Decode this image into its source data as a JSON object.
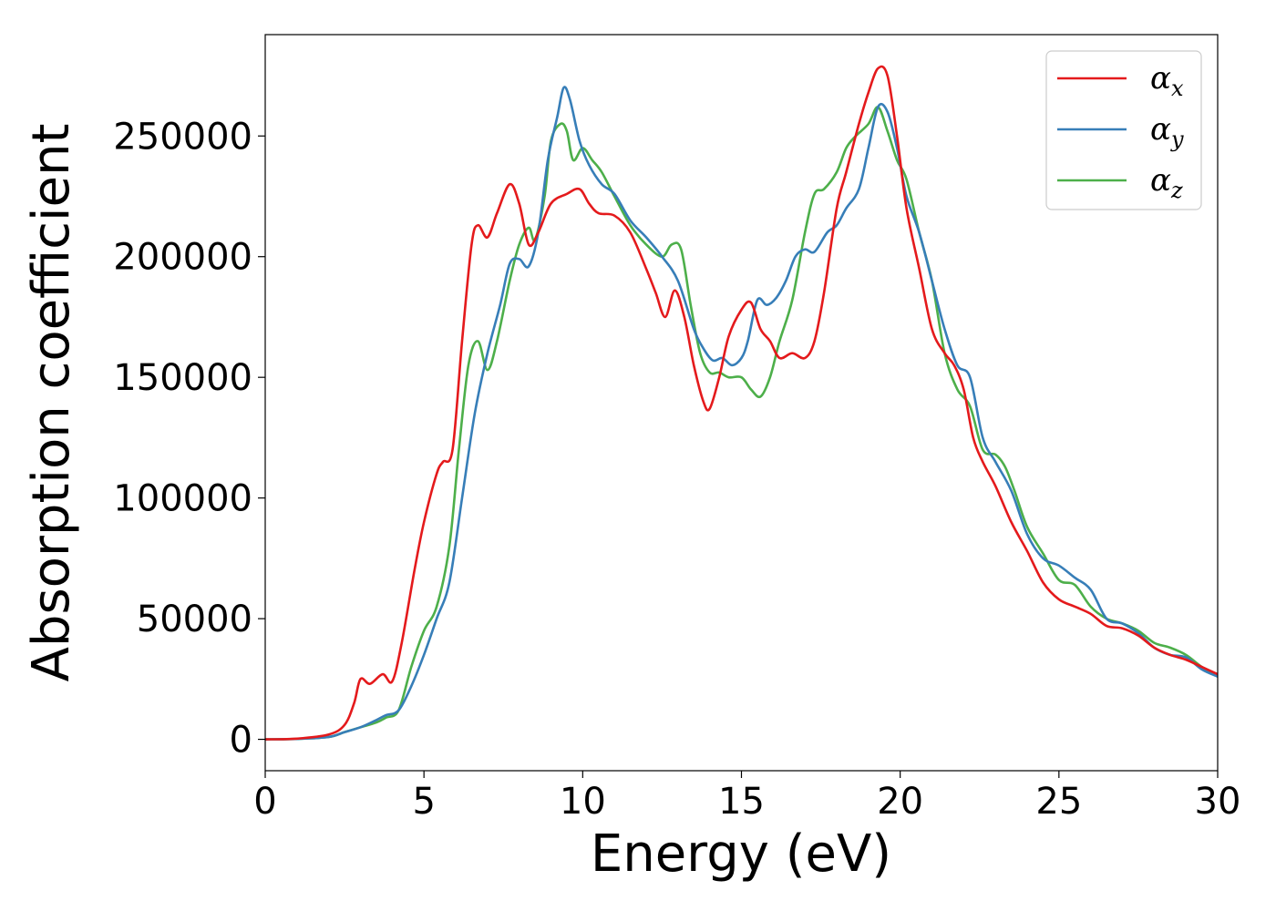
{
  "chart_data": {
    "type": "line",
    "title": "",
    "xlabel": "Energy (eV)",
    "ylabel": "Absorption coefficient",
    "xlim": [
      0,
      30
    ],
    "ylim": [
      -13000,
      292000
    ],
    "xticks": [
      0,
      5,
      10,
      15,
      20,
      25,
      30
    ],
    "xtick_labels": [
      "0",
      "5",
      "10",
      "15",
      "20",
      "25",
      "30"
    ],
    "yticks": [
      0,
      50000,
      100000,
      150000,
      200000,
      250000
    ],
    "ytick_labels": [
      "0",
      "50000",
      "100000",
      "150000",
      "200000",
      "250000"
    ],
    "grid": false,
    "legend_position": "top-right",
    "series": [
      {
        "name": "αx",
        "legend_symbol": "α",
        "legend_sub": "x",
        "color": "#e41a1c",
        "x": [
          0,
          1,
          2,
          2.5,
          2.8,
          3.0,
          3.3,
          3.7,
          4.0,
          4.3,
          4.7,
          5.0,
          5.4,
          5.6,
          5.9,
          6.2,
          6.5,
          6.7,
          7.0,
          7.3,
          7.7,
          8.0,
          8.3,
          8.6,
          9.0,
          9.5,
          9.9,
          10.2,
          10.5,
          11.0,
          11.5,
          12.0,
          12.3,
          12.6,
          12.9,
          13.2,
          13.5,
          13.8,
          14.0,
          14.3,
          14.6,
          15.0,
          15.3,
          15.6,
          15.9,
          16.2,
          16.6,
          17.0,
          17.3,
          17.6,
          18.0,
          18.3,
          18.7,
          19.0,
          19.3,
          19.6,
          19.9,
          20.2,
          20.6,
          21.0,
          21.4,
          21.7,
          22.0,
          22.3,
          22.6,
          23.0,
          23.5,
          24.0,
          24.5,
          25.0,
          25.5,
          26.0,
          26.5,
          27.0,
          27.5,
          28.0,
          28.5,
          29.0,
          29.5,
          30.0
        ],
        "y": [
          0,
          300,
          2000,
          6000,
          15000,
          25000,
          23000,
          27000,
          24000,
          40000,
          70000,
          90000,
          110000,
          115000,
          120000,
          165000,
          205000,
          213000,
          208000,
          218000,
          230000,
          222000,
          205000,
          210000,
          222000,
          226000,
          228000,
          222000,
          218000,
          217000,
          210000,
          195000,
          185000,
          175000,
          186000,
          175000,
          155000,
          140000,
          137000,
          150000,
          167000,
          178000,
          181000,
          170000,
          165000,
          158000,
          160000,
          158000,
          165000,
          185000,
          220000,
          235000,
          255000,
          268000,
          278000,
          275000,
          250000,
          220000,
          195000,
          170000,
          160000,
          155000,
          145000,
          125000,
          115000,
          105000,
          90000,
          78000,
          65000,
          58000,
          55000,
          52000,
          47000,
          46000,
          43000,
          38000,
          35000,
          33000,
          30000,
          27000
        ]
      },
      {
        "name": "αy",
        "legend_symbol": "α",
        "legend_sub": "y",
        "color": "#377eb8",
        "x": [
          0,
          1,
          2,
          2.5,
          3.0,
          3.5,
          3.8,
          4.2,
          4.6,
          5.0,
          5.4,
          5.8,
          6.2,
          6.6,
          7.0,
          7.4,
          7.7,
          8.0,
          8.3,
          8.6,
          8.9,
          9.2,
          9.4,
          9.6,
          9.9,
          10.2,
          10.6,
          11.0,
          11.5,
          12.0,
          12.5,
          13.0,
          13.5,
          13.8,
          14.1,
          14.4,
          14.7,
          15.0,
          15.2,
          15.5,
          15.8,
          16.1,
          16.4,
          16.7,
          17.0,
          17.3,
          17.7,
          18.0,
          18.3,
          18.7,
          19.0,
          19.3,
          19.6,
          19.9,
          20.2,
          20.6,
          21.0,
          21.4,
          21.8,
          22.2,
          22.6,
          23.0,
          23.5,
          24.0,
          24.5,
          25.0,
          25.5,
          26.0,
          26.5,
          27.0,
          27.5,
          28.0,
          28.5,
          29.0,
          29.5,
          30.0
        ],
        "y": [
          0,
          200,
          1000,
          3000,
          5000,
          8000,
          10000,
          12000,
          22000,
          35000,
          50000,
          65000,
          100000,
          135000,
          160000,
          180000,
          197000,
          199000,
          196000,
          210000,
          240000,
          258000,
          270000,
          265000,
          248000,
          238000,
          230000,
          226000,
          215000,
          208000,
          200000,
          190000,
          170000,
          162000,
          157000,
          158000,
          155000,
          158000,
          165000,
          182000,
          180000,
          183000,
          190000,
          200000,
          203000,
          202000,
          210000,
          213000,
          220000,
          228000,
          245000,
          262000,
          260000,
          245000,
          225000,
          210000,
          190000,
          170000,
          155000,
          150000,
          125000,
          115000,
          103000,
          85000,
          75000,
          72000,
          67000,
          62000,
          50000,
          48000,
          44000,
          38000,
          35000,
          34000,
          29000,
          26000
        ]
      },
      {
        "name": "αz",
        "legend_symbol": "α",
        "legend_sub": "z",
        "color": "#4daf4a",
        "x": [
          0,
          1,
          2,
          2.5,
          3.0,
          3.5,
          3.8,
          4.2,
          4.6,
          5.0,
          5.4,
          5.8,
          6.1,
          6.4,
          6.7,
          7.0,
          7.3,
          7.7,
          8.0,
          8.3,
          8.5,
          8.8,
          9.0,
          9.3,
          9.5,
          9.7,
          10.0,
          10.3,
          10.6,
          11.0,
          11.5,
          12.0,
          12.5,
          12.8,
          13.1,
          13.4,
          13.7,
          14.0,
          14.3,
          14.6,
          15.0,
          15.3,
          15.6,
          15.9,
          16.2,
          16.6,
          17.0,
          17.3,
          17.6,
          18.0,
          18.3,
          18.6,
          19.0,
          19.3,
          19.6,
          19.9,
          20.2,
          20.6,
          21.0,
          21.4,
          21.8,
          22.2,
          22.6,
          23.0,
          23.3,
          23.6,
          24.0,
          24.5,
          25.0,
          25.5,
          26.0,
          26.5,
          27.0,
          27.5,
          28.0,
          28.5,
          29.0,
          29.5,
          30.0
        ],
        "y": [
          0,
          200,
          1000,
          3000,
          5000,
          7000,
          9000,
          12000,
          30000,
          45000,
          55000,
          80000,
          120000,
          155000,
          165000,
          153000,
          165000,
          190000,
          205000,
          212000,
          207000,
          225000,
          248000,
          255000,
          252000,
          240000,
          245000,
          240000,
          235000,
          225000,
          213000,
          205000,
          200000,
          205000,
          203000,
          180000,
          160000,
          152000,
          152000,
          150000,
          150000,
          145000,
          142000,
          150000,
          165000,
          182000,
          210000,
          226000,
          228000,
          235000,
          245000,
          250000,
          255000,
          262000,
          252000,
          240000,
          232000,
          210000,
          190000,
          160000,
          145000,
          138000,
          120000,
          118000,
          113000,
          103000,
          88000,
          77000,
          66000,
          64000,
          55000,
          50000,
          48000,
          45000,
          40000,
          38000,
          35000,
          30000,
          26000
        ]
      }
    ]
  }
}
